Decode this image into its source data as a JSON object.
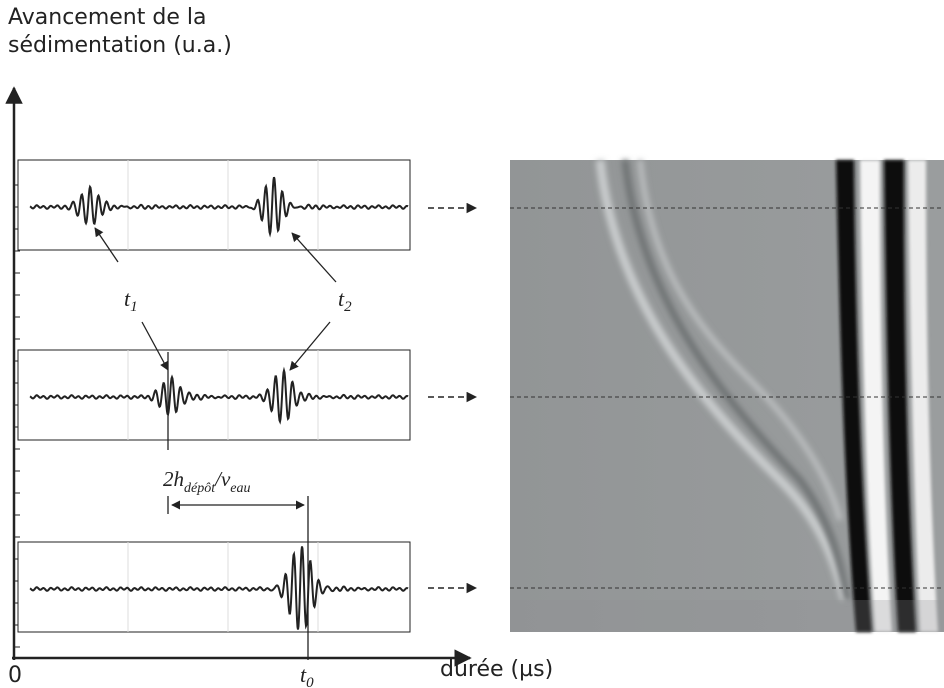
{
  "y_axis_label": [
    "Avancement de la",
    "sédimentation (u.a.)"
  ],
  "x_axis_label": "durée (µs)",
  "origin_label": "0",
  "t1": {
    "main": "t",
    "sub": "1"
  },
  "t2": {
    "main": "t",
    "sub": "2"
  },
  "t0": {
    "main": "t",
    "sub": "0"
  },
  "formula": {
    "part1": "2h",
    "sub1": "dépôt",
    "part2": "/v",
    "sub2": "eau"
  }
}
